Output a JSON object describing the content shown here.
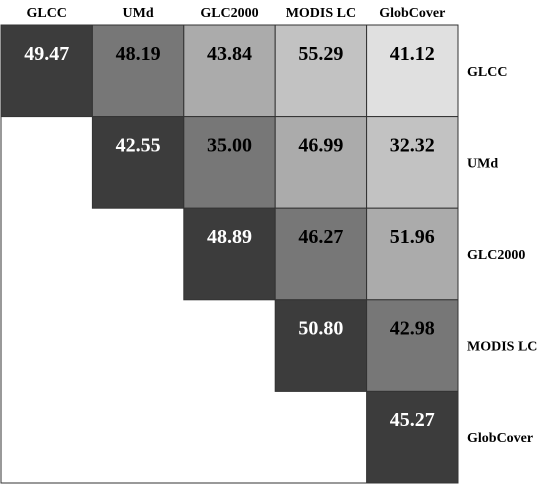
{
  "chart_data": {
    "type": "heatmap",
    "columns": [
      "GLCC",
      "UMd",
      "GLC2000",
      "MODIS LC",
      "GlobCover"
    ],
    "rows": [
      "GLCC",
      "UMd",
      "GLC2000",
      "MODIS LC",
      "GlobCover"
    ],
    "cells": [
      {
        "row": 0,
        "col": 0,
        "value": "49.47",
        "fill": "#3c3c3c",
        "text_color": "#ffffff"
      },
      {
        "row": 0,
        "col": 1,
        "value": "48.19",
        "fill": "#777777",
        "text_color": "#000000"
      },
      {
        "row": 0,
        "col": 2,
        "value": "43.84",
        "fill": "#ababab",
        "text_color": "#000000"
      },
      {
        "row": 0,
        "col": 3,
        "value": "55.29",
        "fill": "#c2c2c2",
        "text_color": "#000000"
      },
      {
        "row": 0,
        "col": 4,
        "value": "41.12",
        "fill": "#e0e0e0",
        "text_color": "#000000"
      },
      {
        "row": 1,
        "col": 1,
        "value": "42.55",
        "fill": "#3c3c3c",
        "text_color": "#ffffff"
      },
      {
        "row": 1,
        "col": 2,
        "value": "35.00",
        "fill": "#777777",
        "text_color": "#000000"
      },
      {
        "row": 1,
        "col": 3,
        "value": "46.99",
        "fill": "#ababab",
        "text_color": "#000000"
      },
      {
        "row": 1,
        "col": 4,
        "value": "32.32",
        "fill": "#c2c2c2",
        "text_color": "#000000"
      },
      {
        "row": 2,
        "col": 2,
        "value": "48.89",
        "fill": "#3c3c3c",
        "text_color": "#ffffff"
      },
      {
        "row": 2,
        "col": 3,
        "value": "46.27",
        "fill": "#777777",
        "text_color": "#000000"
      },
      {
        "row": 2,
        "col": 4,
        "value": "51.96",
        "fill": "#ababab",
        "text_color": "#000000"
      },
      {
        "row": 3,
        "col": 3,
        "value": "50.80",
        "fill": "#3c3c3c",
        "text_color": "#ffffff"
      },
      {
        "row": 3,
        "col": 4,
        "value": "42.98",
        "fill": "#777777",
        "text_color": "#000000"
      },
      {
        "row": 4,
        "col": 4,
        "value": "45.27",
        "fill": "#3c3c3c",
        "text_color": "#ffffff"
      }
    ],
    "grid": true
  }
}
